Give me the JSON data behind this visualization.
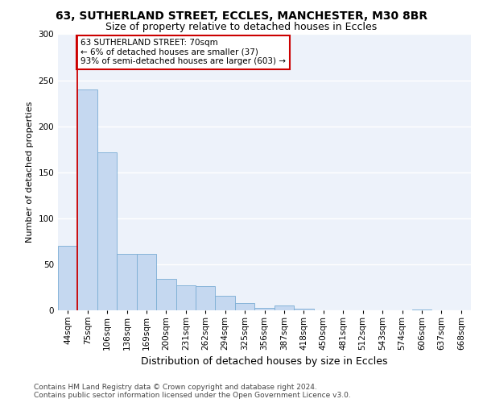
{
  "title_line1": "63, SUTHERLAND STREET, ECCLES, MANCHESTER, M30 8BR",
  "title_line2": "Size of property relative to detached houses in Eccles",
  "xlabel": "Distribution of detached houses by size in Eccles",
  "ylabel": "Number of detached properties",
  "footer_line1": "Contains HM Land Registry data © Crown copyright and database right 2024.",
  "footer_line2": "Contains public sector information licensed under the Open Government Licence v3.0.",
  "categories": [
    "44sqm",
    "75sqm",
    "106sqm",
    "138sqm",
    "169sqm",
    "200sqm",
    "231sqm",
    "262sqm",
    "294sqm",
    "325sqm",
    "356sqm",
    "387sqm",
    "418sqm",
    "450sqm",
    "481sqm",
    "512sqm",
    "543sqm",
    "574sqm",
    "606sqm",
    "637sqm",
    "668sqm"
  ],
  "values": [
    70,
    240,
    172,
    61,
    61,
    34,
    27,
    26,
    16,
    8,
    3,
    5,
    2,
    0,
    0,
    0,
    0,
    0,
    1,
    0,
    0
  ],
  "bar_color": "#c5d8f0",
  "bar_edge_color": "#7aadd4",
  "annotation_line1": "63 SUTHERLAND STREET: 70sqm",
  "annotation_line2": "← 6% of detached houses are smaller (37)",
  "annotation_line3": "93% of semi-detached houses are larger (603) →",
  "marker_color": "#cc0000",
  "ylim": [
    0,
    300
  ],
  "yticks": [
    0,
    50,
    100,
    150,
    200,
    250,
    300
  ],
  "background_color": "#edf2fa",
  "grid_color": "#ffffff",
  "annotation_box_color": "#ffffff",
  "annotation_box_edge_color": "#cc0000",
  "title_fontsize": 10,
  "subtitle_fontsize": 9,
  "xlabel_fontsize": 9,
  "ylabel_fontsize": 8,
  "tick_fontsize": 7.5,
  "annot_fontsize": 7.5,
  "footer_fontsize": 6.5
}
